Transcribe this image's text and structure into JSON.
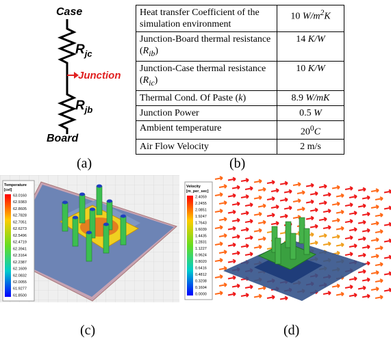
{
  "diagram": {
    "top": "Case",
    "r1": {
      "symbol": "R",
      "sub": "jc"
    },
    "junction": "Junction",
    "r2": {
      "symbol": "R",
      "sub": "jb"
    },
    "bottom": "Board"
  },
  "table": {
    "rows": [
      [
        {
          "text": "Heat transfer Coefficient of the simulation environment"
        },
        {
          "text": "10 ",
          "math": "W/m",
          "sup": "2",
          "after": "K"
        }
      ],
      [
        {
          "text": "Junction-Board thermal resistance (",
          "math": "R",
          "sub": "ib",
          "after": ")"
        },
        {
          "text": "14 ",
          "math": "K/W"
        }
      ],
      [
        {
          "text": "Junction-Case thermal resistance (",
          "math": "R",
          "sub": "ic",
          "after": ")"
        },
        {
          "text": "10 ",
          "math": "K/W"
        }
      ],
      [
        {
          "text": "Thermal Cond. Of Paste (",
          "math": "k",
          "after": ")"
        },
        {
          "text": "8.9 ",
          "math": "W/mK"
        }
      ],
      [
        {
          "text": "Junction Power"
        },
        {
          "text": "0.5 ",
          "math": "W"
        }
      ],
      [
        {
          "text": "Ambient temperature"
        },
        {
          "text": "20",
          "sup": "0",
          "math": "C"
        }
      ],
      [
        {
          "text": "Air Flow Velocity"
        },
        {
          "text": "2 m/s"
        }
      ]
    ]
  },
  "captions": [
    "(a)",
    "(b)",
    "(c)",
    "(d)"
  ],
  "temperature_legend": {
    "title": "Temperature",
    "unit": "[cel]",
    "labels": [
      "63.0160",
      "62.9383",
      "62.8605",
      "62.7828",
      "62.7051",
      "62.6273",
      "62.5496",
      "62.4719",
      "62.3941",
      "62.3164",
      "62.2387",
      "62.1609",
      "62.0832",
      "62.0055",
      "61.9277",
      "61.8500"
    ]
  },
  "velocity_legend": {
    "title": "Velocity",
    "unit": "[m_per_sec]",
    "labels": [
      "2.4059",
      "2.2455",
      "2.0851",
      "1.9247",
      "1.7643",
      "1.6039",
      "1.4435",
      "1.2831",
      "1.1227",
      "0.9624",
      "0.8020",
      "0.6416",
      "0.4812",
      "0.3208",
      "0.1604",
      "0.0000"
    ]
  }
}
